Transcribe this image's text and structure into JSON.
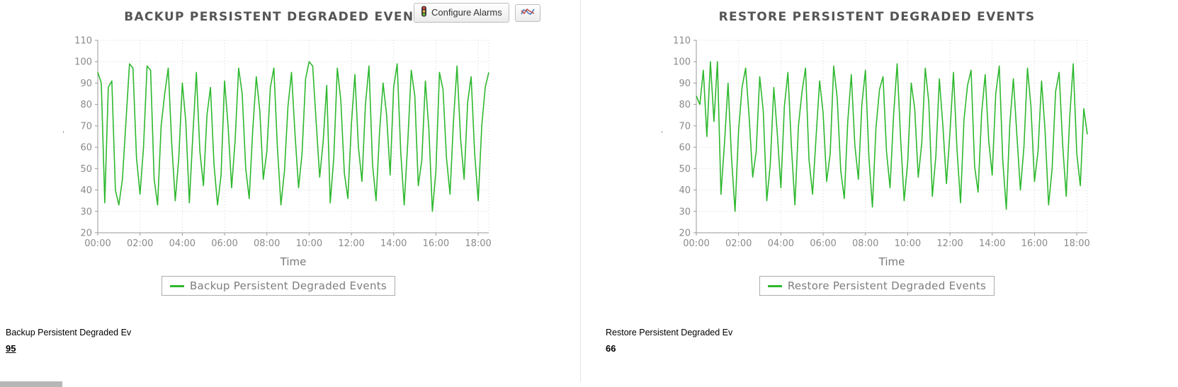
{
  "toolbar": {
    "configure_alarms": "Configure Alarms"
  },
  "icons": {
    "configure_alarms": "traffic-light-icon",
    "chart_button": "line-chart-icon"
  },
  "colors": {
    "series_green": "#2eb82e",
    "title_gray": "#555555",
    "axis_text_gray": "#8a8a8a",
    "legend_text_gray": "#7d7d7d"
  },
  "footers": [
    {
      "label": "Backup Persistent Degraded Ev",
      "value": "95"
    },
    {
      "label": "Restore Persistent Degraded Ev",
      "value": "66"
    }
  ],
  "chart_data": [
    {
      "type": "line",
      "title": "BACKUP PERSISTENT DEGRADED EVENTS",
      "xlabel": "Time",
      "ylabel": "'",
      "ylim": [
        20,
        110
      ],
      "y_ticks": [
        20,
        30,
        40,
        50,
        60,
        70,
        80,
        90,
        100,
        110
      ],
      "x_tick_labels": [
        "00:00",
        "02:00",
        "04:00",
        "06:00",
        "08:00",
        "10:00",
        "12:00",
        "14:00",
        "16:00",
        "18:00"
      ],
      "x_tick_minutes": [
        0,
        120,
        240,
        360,
        480,
        600,
        720,
        840,
        960,
        1080
      ],
      "x_step_min": 10,
      "grid": true,
      "legend_position": "bottom",
      "line_color": "#2eb82e",
      "series": [
        {
          "name": "Backup Persistent Degraded Events",
          "values": [
            95,
            90,
            34,
            88,
            91,
            40,
            33,
            45,
            72,
            99,
            97,
            55,
            38,
            60,
            98,
            96,
            45,
            33,
            70,
            85,
            97,
            62,
            35,
            55,
            90,
            72,
            34,
            66,
            95,
            58,
            42,
            75,
            88,
            52,
            33,
            47,
            91,
            70,
            41,
            63,
            97,
            85,
            50,
            36,
            68,
            93,
            77,
            45,
            58,
            88,
            97,
            60,
            33,
            49,
            79,
            95,
            66,
            41,
            57,
            92,
            100,
            98,
            72,
            46,
            63,
            89,
            34,
            55,
            97,
            82,
            48,
            36,
            71,
            94,
            60,
            44,
            80,
            98,
            52,
            35,
            67,
            90,
            75,
            47,
            88,
            99,
            58,
            33,
            62,
            96,
            84,
            42,
            54,
            91,
            68,
            30,
            49,
            95,
            87,
            55,
            38,
            73,
            98,
            64,
            45,
            81,
            93,
            57,
            35,
            70,
            88,
            95
          ]
        }
      ]
    },
    {
      "type": "line",
      "title": "RESTORE PERSISTENT DEGRADED EVENTS",
      "xlabel": "Time",
      "ylabel": "'",
      "ylim": [
        20,
        110
      ],
      "y_ticks": [
        20,
        30,
        40,
        50,
        60,
        70,
        80,
        90,
        100,
        110
      ],
      "x_tick_labels": [
        "00:00",
        "02:00",
        "04:00",
        "06:00",
        "08:00",
        "10:00",
        "12:00",
        "14:00",
        "16:00",
        "18:00"
      ],
      "x_tick_minutes": [
        0,
        120,
        240,
        360,
        480,
        600,
        720,
        840,
        960,
        1080
      ],
      "x_step_min": 10,
      "grid": true,
      "legend_position": "bottom",
      "line_color": "#2eb82e",
      "series": [
        {
          "name": "Restore Persistent Degraded Events",
          "values": [
            84,
            80,
            96,
            65,
            100,
            72,
            100,
            38,
            62,
            90,
            55,
            30,
            68,
            88,
            97,
            74,
            46,
            58,
            93,
            77,
            35,
            52,
            88,
            66,
            41,
            79,
            95,
            60,
            33,
            70,
            86,
            97,
            54,
            38,
            65,
            91,
            76,
            44,
            57,
            98,
            83,
            49,
            36,
            72,
            94,
            61,
            45,
            80,
            96,
            55,
            32,
            69,
            87,
            93,
            58,
            41,
            75,
            99,
            64,
            35,
            53,
            90,
            78,
            46,
            62,
            97,
            81,
            37,
            56,
            92,
            70,
            43,
            67,
            95,
            59,
            34,
            73,
            89,
            96,
            51,
            39,
            76,
            94,
            63,
            47,
            85,
            98,
            54,
            31,
            71,
            92,
            66,
            40,
            60,
            97,
            79,
            44,
            58,
            91,
            68,
            33,
            50,
            86,
            95,
            61,
            37,
            74,
            99,
            57,
            42,
            78,
            66
          ]
        }
      ]
    }
  ]
}
